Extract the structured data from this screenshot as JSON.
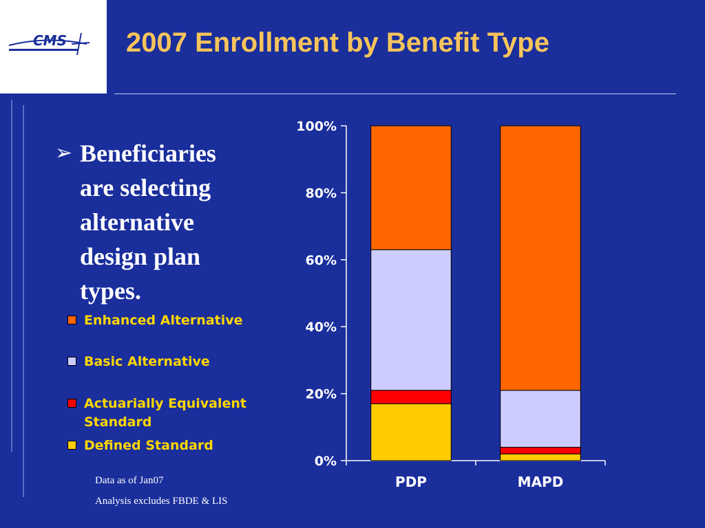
{
  "slide": {
    "title": "2007 Enrollment by Benefit Type",
    "logo_text": "CMS",
    "bullet": "Beneficiaries are selecting alternative design plan types.",
    "notes": [
      "Data as of Jan07",
      "Analysis excludes FBDE & LIS"
    ]
  },
  "chart_data": {
    "type": "bar",
    "stacked": true,
    "categories": [
      "PDP",
      "MAPD"
    ],
    "series": [
      {
        "name": "Defined Standard",
        "color": "#ffcc00",
        "values": [
          17,
          2
        ]
      },
      {
        "name": "Actuarially Equivalent Standard",
        "color": "#ff0000",
        "values": [
          4,
          2
        ]
      },
      {
        "name": "Basic Alternative",
        "color": "#ccccff",
        "values": [
          42,
          17
        ]
      },
      {
        "name": "Enhanced Alternative",
        "color": "#ff6600",
        "values": [
          37,
          79
        ]
      }
    ],
    "legend_order": [
      "Enhanced Alternative",
      "Basic Alternative",
      "Actuarially Equivalent Standard",
      "Defined Standard"
    ],
    "yticks": [
      "0%",
      "20%",
      "40%",
      "60%",
      "80%",
      "100%"
    ],
    "ylim": [
      0,
      100
    ],
    "legend_position": "left",
    "grid": false
  }
}
